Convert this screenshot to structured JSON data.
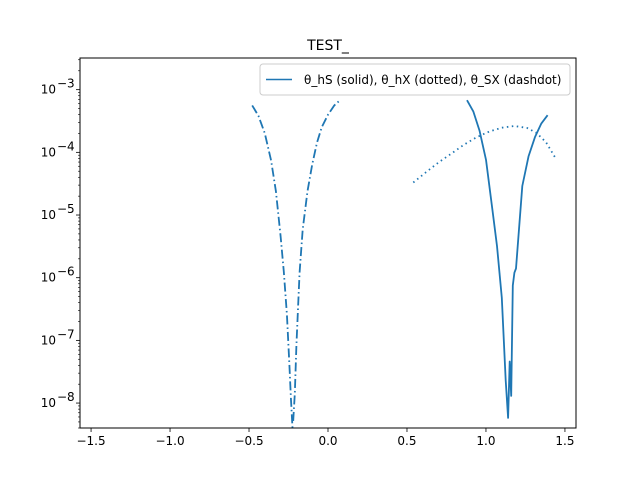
{
  "chart_data": {
    "type": "line",
    "title": "TEST_",
    "xlabel": "",
    "ylabel": "",
    "xscale": "linear",
    "yscale": "log",
    "xlim": [
      -1.57,
      1.57
    ],
    "ylim": [
      4e-09,
      0.0032
    ],
    "grid": false,
    "legend_position": "top-right",
    "line_color": "#1f77b4",
    "x_ticks": [
      -1.5,
      -1.0,
      -0.5,
      0.0,
      0.5,
      1.0,
      1.5
    ],
    "x_tick_labels": [
      "−1.5",
      "−1.0",
      "−0.5",
      "0.0",
      "0.5",
      "1.0",
      "1.5"
    ],
    "y_tick_exponents": [
      -8,
      -7,
      -6,
      -5,
      -4,
      -3
    ],
    "legend": {
      "label": "θ_hS (solid), θ_hX (dotted), θ_SX (dashdot)"
    },
    "series": [
      {
        "style": "solid",
        "x": [
          0.88,
          0.92,
          0.96,
          1.0,
          1.04,
          1.07,
          1.1,
          1.125,
          1.14,
          1.15,
          1.16,
          1.17,
          1.18,
          1.19,
          1.23,
          1.27,
          1.31,
          1.35,
          1.39
        ],
        "y": [
          0.00068,
          0.00045,
          0.00022,
          7.6e-05,
          1.25e-05,
          3.2e-06,
          4.8e-07,
          2.3e-08,
          5.8e-09,
          4.6e-08,
          1.3e-08,
          7.5e-07,
          1.2e-06,
          1.4e-06,
          2.9e-05,
          8.7e-05,
          0.000174,
          0.000286,
          0.000391
        ]
      },
      {
        "style": "dotted",
        "x": [
          0.54,
          0.62,
          0.7,
          0.78,
          0.86,
          0.94,
          1.02,
          1.1,
          1.18,
          1.26,
          1.32,
          1.38,
          1.44
        ],
        "y": [
          3.3e-05,
          4.8e-05,
          6.9e-05,
          9.5e-05,
          0.000132,
          0.000174,
          0.000214,
          0.000247,
          0.000263,
          0.000245,
          0.000204,
          0.000145,
          8.1e-05
        ]
      },
      {
        "style": "dashdot",
        "segments": [
          {
            "x": [
              -0.48,
              -0.44,
              -0.4,
              -0.36,
              -0.33,
              -0.3,
              -0.28,
              -0.26,
              -0.245,
              -0.235,
              -0.225
            ],
            "y": [
              0.00056,
              0.00038,
              0.000201,
              7.4e-05,
              2.4e-05,
              4.6e-06,
              1.25e-06,
              2.6e-07,
              4.4e-08,
              1.2e-08,
              4e-09
            ]
          },
          {
            "x": [
              -0.22,
              -0.21,
              -0.2,
              -0.19,
              -0.18,
              -0.16,
              -0.13,
              -0.1,
              -0.07,
              -0.04,
              0.0,
              0.04,
              0.07
            ],
            "y": [
              5.2e-09,
              1.4e-08,
              8.3e-08,
              3.2e-07,
              1.22e-06,
              5.9e-06,
              2.4e-05,
              6.4e-05,
              0.000141,
              0.000251,
              0.000398,
              0.00056,
              0.00066
            ]
          }
        ]
      }
    ]
  }
}
